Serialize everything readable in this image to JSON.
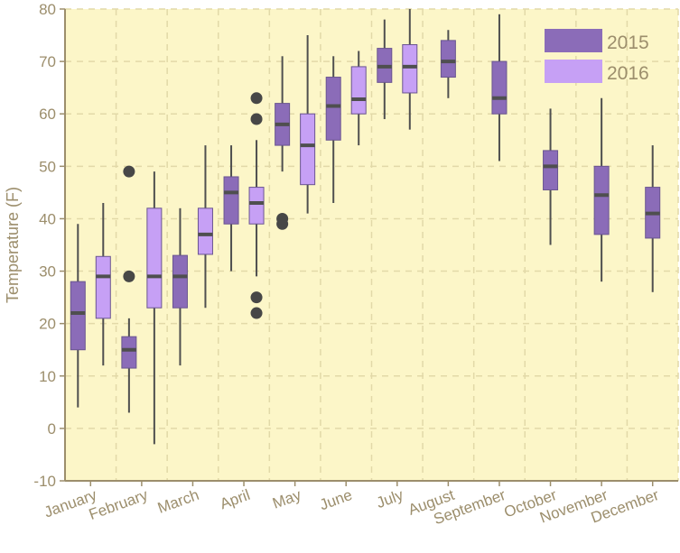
{
  "chart_data": {
    "type": "box",
    "title": "",
    "ylabel": "Temperature (F)",
    "xlabel": "",
    "ylim": [
      -10,
      80
    ],
    "yticks": [
      -10,
      0,
      10,
      20,
      30,
      40,
      50,
      60,
      70,
      80
    ],
    "grid": true,
    "legend_position": "top-right",
    "colors": {
      "background": "#fcf6c8",
      "grid": "#e2d9a8",
      "axis": "#9c8e6c",
      "series_2015": "#8b6cb8",
      "series_2016": "#c6a0f5",
      "outline": "#6a5590",
      "median": "#4f4f4f",
      "whisker": "#4f4f4f",
      "outlier": "#474747"
    },
    "categories": [
      "January",
      "February",
      "March",
      "April",
      "May",
      "June",
      "July",
      "August",
      "September",
      "October",
      "November",
      "December"
    ],
    "series": [
      {
        "name": "2015",
        "boxes": [
          {
            "category": "January",
            "min": 4,
            "q1": 15,
            "median": 22,
            "q3": 28,
            "max": 39,
            "outliers": []
          },
          {
            "category": "February",
            "min": 3,
            "q1": 11.5,
            "median": 15,
            "q3": 17.5,
            "max": 21,
            "outliers": [
              29,
              49
            ]
          },
          {
            "category": "March",
            "min": 12,
            "q1": 23,
            "median": 29,
            "q3": 33,
            "max": 42,
            "outliers": []
          },
          {
            "category": "April",
            "min": 30,
            "q1": 39,
            "median": 45,
            "q3": 48,
            "max": 54,
            "outliers": []
          },
          {
            "category": "May",
            "min": 49,
            "q1": 54,
            "median": 58,
            "q3": 62,
            "max": 71,
            "outliers": [
              39,
              40
            ]
          },
          {
            "category": "June",
            "min": 43,
            "q1": 55,
            "median": 61.5,
            "q3": 67,
            "max": 71,
            "outliers": []
          },
          {
            "category": "July",
            "min": 59,
            "q1": 66,
            "median": 69,
            "q3": 72.5,
            "max": 78,
            "outliers": []
          },
          {
            "category": "August",
            "min": 63,
            "q1": 67,
            "median": 70,
            "q3": 74,
            "max": 76,
            "outliers": []
          },
          {
            "category": "September",
            "min": 51,
            "q1": 60,
            "median": 63,
            "q3": 70,
            "max": 79,
            "outliers": []
          },
          {
            "category": "October",
            "min": 35,
            "q1": 45.5,
            "median": 50,
            "q3": 53,
            "max": 61,
            "outliers": []
          },
          {
            "category": "November",
            "min": 28,
            "q1": 37,
            "median": 44.5,
            "q3": 50,
            "max": 63,
            "outliers": []
          },
          {
            "category": "December",
            "min": 26,
            "q1": 36.3,
            "median": 41,
            "q3": 46,
            "max": 54,
            "outliers": []
          }
        ]
      },
      {
        "name": "2016",
        "boxes": [
          {
            "category": "January",
            "min": 12,
            "q1": 21,
            "median": 29,
            "q3": 32.8,
            "max": 43,
            "outliers": []
          },
          {
            "category": "February",
            "min": -3,
            "q1": 23,
            "median": 29,
            "q3": 42,
            "max": 49,
            "outliers": []
          },
          {
            "category": "March",
            "min": 23,
            "q1": 33.2,
            "median": 37,
            "q3": 42,
            "max": 54,
            "outliers": []
          },
          {
            "category": "April",
            "min": 29,
            "q1": 39,
            "median": 43,
            "q3": 46,
            "max": 55,
            "outliers": [
              22,
              25,
              59,
              63
            ]
          },
          {
            "category": "May",
            "min": 41,
            "q1": 46.5,
            "median": 54,
            "q3": 60,
            "max": 75,
            "outliers": []
          },
          {
            "category": "June",
            "min": 54,
            "q1": 60,
            "median": 62.8,
            "q3": 69,
            "max": 72,
            "outliers": []
          },
          {
            "category": "July",
            "min": 57,
            "q1": 64,
            "median": 69,
            "q3": 73.2,
            "max": 80,
            "outliers": []
          }
        ]
      }
    ]
  }
}
